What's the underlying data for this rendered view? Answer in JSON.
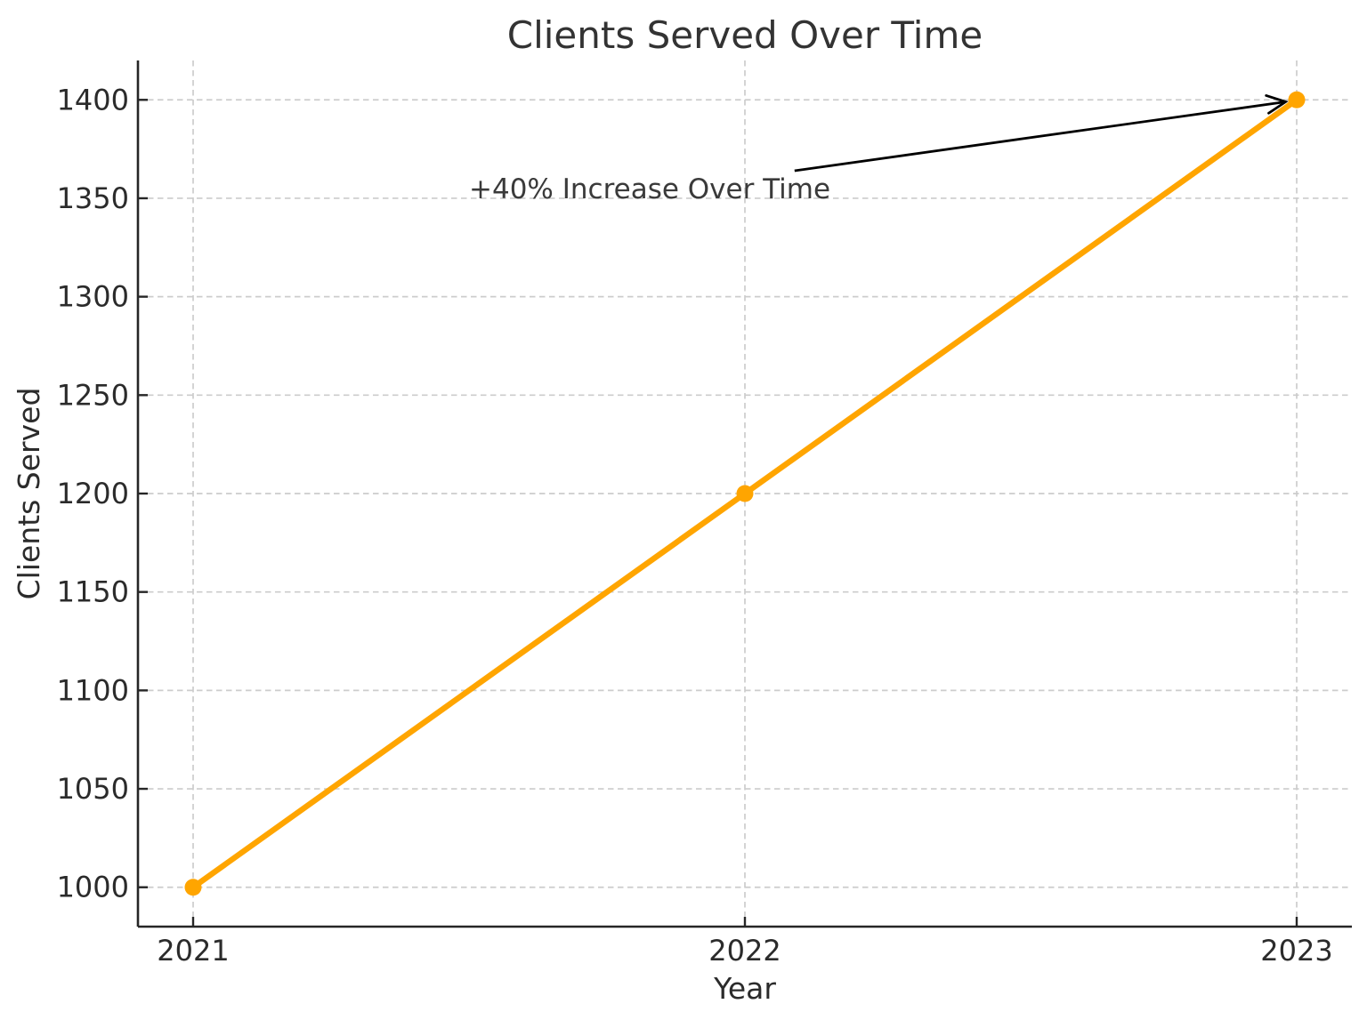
{
  "figure": {
    "background": "#ffffff"
  },
  "chart_data": {
    "type": "line",
    "title": "Clients Served Over Time",
    "xlabel": "Year",
    "ylabel": "Clients Served",
    "x": [
      2021,
      2022,
      2023
    ],
    "series": [
      {
        "name": "Clients Served",
        "values": [
          1000,
          1200,
          1400
        ],
        "color": "#FFA500",
        "marker": "circle",
        "marker_radius": 9.5
      }
    ],
    "xlim": [
      2020.9,
      2023.1
    ],
    "ylim": [
      980,
      1420
    ],
    "xticks": [
      2021,
      2022,
      2023
    ],
    "yticks": [
      1000,
      1050,
      1100,
      1150,
      1200,
      1250,
      1300,
      1350,
      1400
    ],
    "grid": true,
    "grid_style": "dashed",
    "legend_position": "none",
    "annotation": {
      "text": "+40% Increase Over Time",
      "text_pos": [
        2021.5,
        1350
      ],
      "arrow_start": [
        2022.09,
        1364
      ],
      "arrow_end": [
        2022.98,
        1399
      ],
      "arrow_color": "#000000"
    },
    "colors": {
      "line": "#FFA500",
      "grid": "#cccccc",
      "axis": "#262626",
      "title_text": "#333333",
      "annotation_text": "#3a3a3a"
    }
  }
}
